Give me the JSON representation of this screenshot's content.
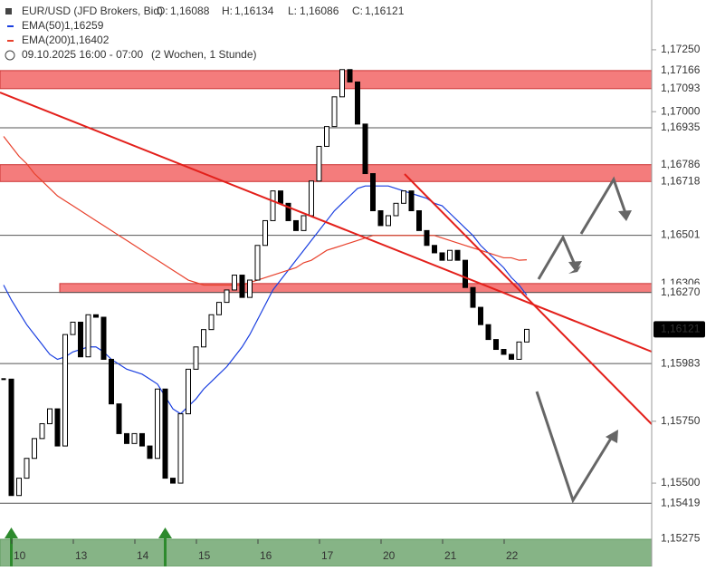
{
  "chart_data": {
    "type": "candlestick",
    "title": "EUR/USD (JFD Brokers, Bid)",
    "ohlc": [
      {
        "label": "O:",
        "value_label": "1,16088"
      },
      {
        "label": "H:",
        "value_label": "1,16134"
      },
      {
        "label": "L:",
        "value_label": "1,16086"
      },
      {
        "label": "C:",
        "value_label": "1,16121"
      }
    ],
    "subtitle": "09.10.2025 16:00 - 07:00",
    "subtitle_note": "(2 Wochen, 1 Stunde)",
    "categories": [
      null,
      null,
      "10",
      null,
      null,
      null,
      null,
      null,
      null,
      null,
      "13",
      null,
      null,
      null,
      null,
      null,
      null,
      null,
      "14",
      null,
      null,
      null,
      null,
      null,
      null,
      null,
      "15",
      null,
      null,
      null,
      null,
      null,
      null,
      null,
      "16",
      null,
      null,
      null,
      null,
      null,
      null,
      null,
      "17",
      null,
      null,
      null,
      null,
      null,
      null,
      null,
      "20",
      null,
      null,
      null,
      null,
      null,
      null,
      null,
      "21",
      null,
      null,
      null,
      null,
      null,
      null,
      null,
      "22",
      null,
      null
    ],
    "values": [
      1.1592,
      1.1545,
      1.1552,
      1.156,
      1.1568,
      1.1574,
      1.158,
      1.1565,
      1.161,
      1.1615,
      1.1601,
      1.1618,
      1.1617,
      1.16,
      1.1582,
      1.157,
      1.1566,
      1.157,
      1.1565,
      1.156,
      1.1588,
      1.1552,
      1.155,
      1.1578,
      1.1596,
      1.1605,
      1.1612,
      1.1618,
      1.1623,
      1.1628,
      1.1634,
      1.1625,
      1.1632,
      1.1646,
      1.1656,
      1.1668,
      1.1663,
      1.1656,
      1.1652,
      1.1658,
      1.1672,
      1.1686,
      1.1694,
      1.1706,
      1.1717,
      1.1712,
      1.1695,
      1.1675,
      1.166,
      1.1654,
      1.1658,
      1.1663,
      1.1668,
      1.166,
      1.1652,
      1.1646,
      1.1643,
      1.164,
      1.1644,
      1.164,
      1.1629,
      1.1621,
      1.1614,
      1.1608,
      1.1604,
      1.1602,
      1.16,
      1.1607,
      1.16121
    ],
    "up_color": "#ffffff",
    "down_color": "#000000",
    "series": [
      {
        "name": "EMA(50)",
        "color": "#1a3fe0",
        "value_label": "1,16259",
        "values": [
          1.163,
          1.1624,
          1.1619,
          1.1614,
          1.161,
          1.1606,
          1.1602,
          1.16,
          1.1601,
          1.1603,
          1.1604,
          1.1605,
          1.1605,
          1.1603,
          1.16,
          1.1598,
          1.1596,
          1.1595,
          1.1594,
          1.1592,
          1.159,
          1.1585,
          1.158,
          1.1578,
          1.1581,
          1.1584,
          1.1588,
          1.1591,
          1.1594,
          1.1597,
          1.1601,
          1.1605,
          1.161,
          1.1616,
          1.1622,
          1.1628,
          1.1632,
          1.1636,
          1.164,
          1.1644,
          1.1648,
          1.1652,
          1.1656,
          1.166,
          1.1663,
          1.1666,
          1.1669,
          1.167,
          1.167,
          1.167,
          1.167,
          1.1669,
          1.1668,
          1.1667,
          1.1666,
          1.1665,
          1.1663,
          1.1662,
          1.1659,
          1.1656,
          1.1653,
          1.165,
          1.1646,
          1.1643,
          1.164,
          1.1637,
          1.1633,
          1.163,
          1.16259
        ]
      },
      {
        "name": "EMA(200)",
        "color": "#e8412c",
        "value_label": "1,16402",
        "values": [
          1.169,
          1.1686,
          1.1682,
          1.1679,
          1.1675,
          1.1672,
          1.1669,
          1.1666,
          1.1664,
          1.1662,
          1.166,
          1.1658,
          1.1656,
          1.1654,
          1.1652,
          1.165,
          1.1648,
          1.1646,
          1.1644,
          1.1642,
          1.164,
          1.1638,
          1.1636,
          1.1634,
          1.1632,
          1.1631,
          1.163,
          1.163,
          1.163,
          1.163,
          1.163,
          1.163,
          1.1631,
          1.1632,
          1.1633,
          1.1634,
          1.1635,
          1.1636,
          1.1637,
          1.1639,
          1.164,
          1.1642,
          1.1644,
          1.1645,
          1.1646,
          1.1647,
          1.1648,
          1.1649,
          1.165,
          1.165,
          1.165,
          1.165,
          1.165,
          1.165,
          1.165,
          1.165,
          1.165,
          1.1649,
          1.1648,
          1.1647,
          1.1646,
          1.1645,
          1.1644,
          1.1643,
          1.1642,
          1.1641,
          1.1641,
          1.164,
          1.16402
        ]
      }
    ],
    "ylim": [
      1.15255,
      1.17451
    ],
    "yticks": [
      {
        "value": 1.1725,
        "label": "1,17250"
      },
      {
        "value": 1.17,
        "label": "1,17000"
      },
      {
        "value": 1.1575,
        "label": "1,15750"
      },
      {
        "value": 1.155,
        "label": "1,15500"
      }
    ],
    "zones": [
      {
        "top": 1.17166,
        "bottom": 1.17093
      },
      {
        "top": 1.16786,
        "bottom": 1.16718
      },
      {
        "top": 1.16306,
        "bottom": 1.1627
      }
    ],
    "zone_color": "#f47c7c",
    "levels": [
      {
        "value": 1.17166,
        "label": "1,17166",
        "line": false
      },
      {
        "value": 1.17093,
        "label": "1,17093",
        "line": false
      },
      {
        "value": 1.16935,
        "label": "1,16935",
        "line": true
      },
      {
        "value": 1.16786,
        "label": "1,16786",
        "line": false
      },
      {
        "value": 1.16718,
        "label": "1,16718",
        "line": false
      },
      {
        "value": 1.16501,
        "label": "1,16501",
        "line": true
      },
      {
        "value": 1.16306,
        "label": "1,16306",
        "line": false
      },
      {
        "value": 1.1627,
        "label": "1,16270",
        "line": true
      },
      {
        "value": 1.16121,
        "label": "1,16121",
        "line": false,
        "current": true
      },
      {
        "value": 1.15983,
        "label": "1,15983",
        "line": true
      },
      {
        "value": 1.15419,
        "label": "1,15419",
        "line": true
      },
      {
        "value": 1.15275,
        "label": "1,15275",
        "line": false
      }
    ]
  }
}
